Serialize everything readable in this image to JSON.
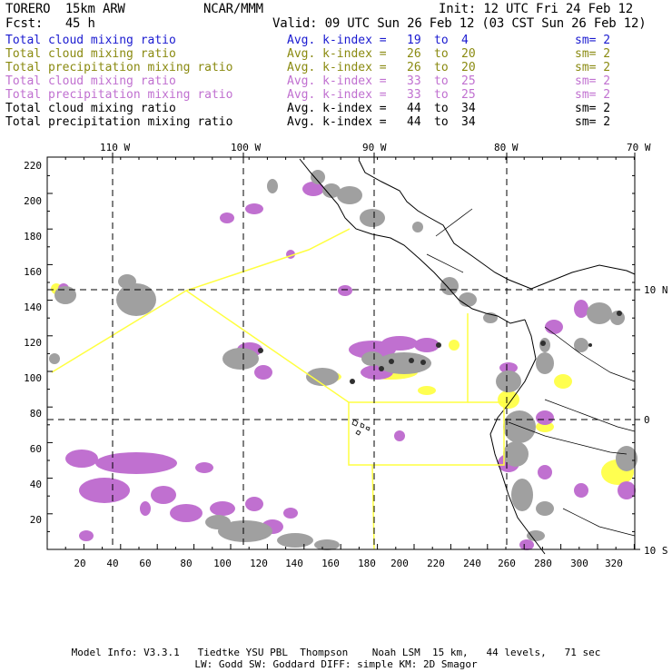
{
  "header": {
    "model": "TORERO  15km ARW",
    "org": "NCAR/MMM",
    "init": "Init: 12 UTC Fri 24 Feb 12",
    "fcst": "Fcst:   45 h",
    "valid": "Valid: 09 UTC Sun 26 Feb 12 (03 CST Sun 26 Feb 12)"
  },
  "legend": [
    {
      "field": "Total cloud mixing ratio",
      "stat": "Avg. k-index =",
      "from": "19",
      "to_word": "to",
      "to": "4",
      "sm": "sm= 2",
      "color": "#1a1ad0"
    },
    {
      "field": "Total cloud mixing ratio",
      "stat": "Avg. k-index =",
      "from": "26",
      "to_word": "to",
      "to": "20",
      "sm": "sm= 2",
      "color": "#8a8a10"
    },
    {
      "field": "Total precipitation mixing ratio",
      "stat": "Avg. k-index =",
      "from": "26",
      "to_word": "to",
      "to": "20",
      "sm": "sm= 2",
      "color": "#8a8a10"
    },
    {
      "field": "Total cloud mixing ratio",
      "stat": "Avg. k-index =",
      "from": "33",
      "to_word": "to",
      "to": "25",
      "sm": "sm= 2",
      "color": "#c070d0"
    },
    {
      "field": "Total precipitation mixing ratio",
      "stat": "Avg. k-index =",
      "from": "33",
      "to_word": "to",
      "to": "25",
      "sm": "sm= 2",
      "color": "#c070d0"
    },
    {
      "field": "Total cloud mixing ratio",
      "stat": "Avg. k-index =",
      "from": "44",
      "to_word": "to",
      "to": "34",
      "sm": "sm= 2",
      "color": "#000000"
    },
    {
      "field": "Total precipitation mixing ratio",
      "stat": "Avg. k-index =",
      "from": "44",
      "to_word": "to",
      "to": "34",
      "sm": "sm= 2",
      "color": "#000000"
    }
  ],
  "axes": {
    "top_lon_labels": [
      "110 W",
      "100 W",
      "90 W",
      "80 W",
      "70 W"
    ],
    "right_lat_labels": [
      "10 N",
      "0",
      "10 S"
    ],
    "left_y_ticks": [
      "220",
      "200",
      "180",
      "160",
      "140",
      "120",
      "100",
      "80",
      "60",
      "40",
      "20"
    ],
    "bottom_x_ticks": [
      "20",
      "40",
      "60",
      "80",
      "100",
      "120",
      "140",
      "160",
      "180",
      "200",
      "220",
      "240",
      "260",
      "280",
      "300",
      "320"
    ]
  },
  "colors": {
    "yellow": "#ffff50",
    "violet": "#c070d0",
    "gray": "#a0a0a0",
    "dark": "#303030",
    "outline": "#ffff40"
  },
  "footer": {
    "line1": "Model Info: V3.3.1   Tiedtke YSU PBL  Thompson    Noah LSM  15 km,   44 levels,   71 sec",
    "line2": "LW: Godd SW: Goddard DIFF: simple KM: 2D Smagor"
  }
}
